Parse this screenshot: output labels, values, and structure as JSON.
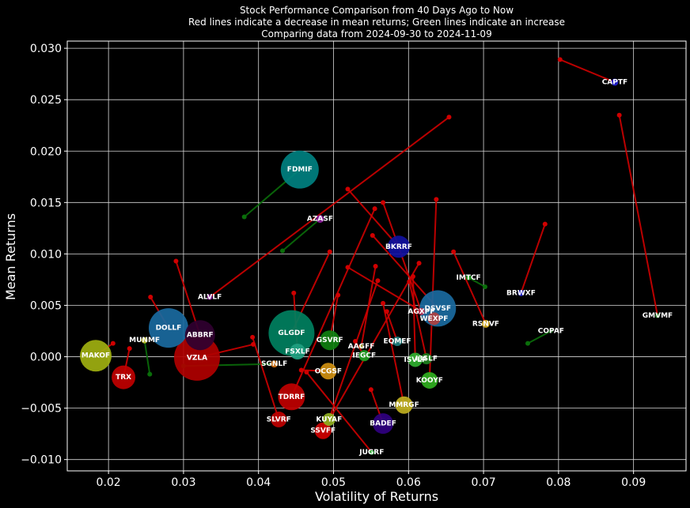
{
  "chart_data": {
    "type": "scatter",
    "title": [
      "Stock Performance Comparison from 40 Days Ago to Now",
      "Red lines indicate a decrease in mean returns; Green lines indicate an increase",
      "Comparing data from 2024-09-30 to 2024-11-09"
    ],
    "xlabel": "Volatility of Returns",
    "ylabel": "Mean Returns",
    "xlim": [
      0.0145,
      0.097
    ],
    "ylim": [
      -0.0111,
      0.0307
    ],
    "xticks": [
      0.02,
      0.03,
      0.04,
      0.05,
      0.06,
      0.07,
      0.08,
      0.09
    ],
    "yticks": [
      -0.01,
      -0.005,
      0.0,
      0.005,
      0.01,
      0.015,
      0.02,
      0.025,
      0.03
    ],
    "xtick_labels": [
      "0.02",
      "0.03",
      "0.04",
      "0.05",
      "0.06",
      "0.07",
      "0.08",
      "0.09"
    ],
    "ytick_labels": [
      "−0.010",
      "−0.005",
      "0.000",
      "0.005",
      "0.010",
      "0.015",
      "0.020",
      "0.025",
      "0.030"
    ],
    "grid": true,
    "increase_color": "#0a6e0a",
    "decrease_color": "#d00000",
    "points": [
      {
        "ticker": "CAPTF",
        "x": 0.0875,
        "y": 0.0267,
        "old_x": 0.0802,
        "old_y": 0.0289,
        "size": 9,
        "color": "#2020d0"
      },
      {
        "ticker": "FDMIF",
        "x": 0.0455,
        "y": 0.0182,
        "old_x": 0.0381,
        "old_y": 0.0136,
        "size": 48,
        "color": "#008080"
      },
      {
        "ticker": "AZASF",
        "x": 0.0482,
        "y": 0.0134,
        "old_x": 0.0432,
        "old_y": 0.0103,
        "size": 10,
        "color": "#8b1a9b"
      },
      {
        "ticker": "BKRRF",
        "x": 0.0587,
        "y": 0.0107,
        "old_x": 0.0519,
        "old_y": 0.0163,
        "size": 28,
        "color": "#1010a0"
      },
      {
        "ticker": "IMTCF",
        "x": 0.068,
        "y": 0.0077,
        "old_x": 0.0702,
        "old_y": 0.0068,
        "size": 7,
        "color": "#22a022"
      },
      {
        "ticker": "ALVLF",
        "x": 0.0335,
        "y": 0.0058,
        "old_x": 0.0654,
        "old_y": 0.0233,
        "size": 7,
        "color": "#8b1a9b"
      },
      {
        "ticker": "BRWXF",
        "x": 0.075,
        "y": 0.0062,
        "old_x": 0.0782,
        "old_y": 0.0129,
        "size": 8,
        "color": "#2020d0"
      },
      {
        "ticker": "GMVMF",
        "x": 0.0932,
        "y": 0.004,
        "old_x": 0.0881,
        "old_y": 0.0235,
        "size": 6,
        "color": "#2a8a2a"
      },
      {
        "ticker": "DSVSF",
        "x": 0.0639,
        "y": 0.0047,
        "old_x": 0.0552,
        "old_y": 0.0118,
        "size": 46,
        "color": "#1a6aa0"
      },
      {
        "ticker": "AGXPF",
        "x": 0.0617,
        "y": 0.0044,
        "old_x": 0.0566,
        "old_y": 0.015,
        "size": 9,
        "color": "#c03050"
      },
      {
        "ticker": "WEXPF",
        "x": 0.0634,
        "y": 0.0037,
        "old_x": 0.0519,
        "old_y": 0.0087,
        "size": 16,
        "color": "#b04040"
      },
      {
        "ticker": "RSNVF",
        "x": 0.0703,
        "y": 0.0032,
        "old_x": 0.066,
        "old_y": 0.0102,
        "size": 10,
        "color": "#d9b020"
      },
      {
        "ticker": "COPAF",
        "x": 0.079,
        "y": 0.0025,
        "old_x": 0.0759,
        "old_y": 0.0013,
        "size": 5,
        "color": "#1a6a1a"
      },
      {
        "ticker": "DOLLF",
        "x": 0.028,
        "y": 0.0028,
        "old_x": 0.0256,
        "old_y": 0.0058,
        "size": 50,
        "color": "#1a6aa0"
      },
      {
        "ticker": "ABBRF",
        "x": 0.0322,
        "y": 0.0021,
        "old_x": 0.029,
        "old_y": 0.0093,
        "size": 38,
        "color": "#300030"
      },
      {
        "ticker": "GLGDF",
        "x": 0.0444,
        "y": 0.0023,
        "old_x": 0.0495,
        "old_y": 0.0102,
        "size": 58,
        "color": "#008060"
      },
      {
        "ticker": "GSVRF",
        "x": 0.0495,
        "y": 0.0016,
        "old_x": 0.0506,
        "old_y": 0.006,
        "size": 25,
        "color": "#108010"
      },
      {
        "ticker": "MUNMF",
        "x": 0.0248,
        "y": 0.0016,
        "old_x": 0.0255,
        "old_y": -0.0017,
        "size": 8,
        "color": "#c0c030"
      },
      {
        "ticker": "EQMEF",
        "x": 0.0585,
        "y": 0.0015,
        "old_x": 0.0571,
        "old_y": 0.0044,
        "size": 12,
        "color": "#208080"
      },
      {
        "ticker": "AAGFF",
        "x": 0.0537,
        "y": 0.001,
        "old_x": 0.0556,
        "old_y": 0.0088,
        "size": 6,
        "color": "#a0a030"
      },
      {
        "ticker": "FSXLF",
        "x": 0.0452,
        "y": 0.0005,
        "old_x": 0.0447,
        "old_y": 0.0062,
        "size": 20,
        "color": "#20a080"
      },
      {
        "ticker": "IEGCF",
        "x": 0.0541,
        "y": 0.0001,
        "old_x": 0.0529,
        "old_y": 0.0015,
        "size": 14,
        "color": "#20a020"
      },
      {
        "ticker": "MAKOF",
        "x": 0.0183,
        "y": 0.0001,
        "old_x": 0.0206,
        "old_y": 0.0013,
        "size": 40,
        "color": "#a0b010"
      },
      {
        "ticker": "VZLA",
        "x": 0.0318,
        "y": -0.0001,
        "old_x": 0.0393,
        "old_y": 0.0012,
        "size": 58,
        "color": "#b00000"
      },
      {
        "ticker": "ISVLF",
        "x": 0.0609,
        "y": -0.0003,
        "old_x": 0.0606,
        "old_y": 0.0078,
        "size": 18,
        "color": "#30b030"
      },
      {
        "ticker": "I3SLF",
        "x": 0.0624,
        "y": -0.0002,
        "old_x": 0.0601,
        "old_y": 0.0073,
        "size": 14,
        "color": "#208020"
      },
      {
        "ticker": "SGNLF",
        "x": 0.0421,
        "y": -0.0007,
        "old_x": 0.03,
        "old_y": -0.0009,
        "size": 9,
        "color": "#d07010"
      },
      {
        "ticker": "OCGSF",
        "x": 0.0493,
        "y": -0.0014,
        "old_x": 0.0457,
        "old_y": -0.0013,
        "size": 21,
        "color": "#d09010"
      },
      {
        "ticker": "TRX",
        "x": 0.022,
        "y": -0.002,
        "old_x": 0.0228,
        "old_y": 0.0008,
        "size": 30,
        "color": "#c00000"
      },
      {
        "ticker": "KOOYF",
        "x": 0.0628,
        "y": -0.0023,
        "old_x": 0.0637,
        "old_y": 0.0153,
        "size": 21,
        "color": "#30b020"
      },
      {
        "ticker": "TDRRF",
        "x": 0.0444,
        "y": -0.0039,
        "old_x": 0.0555,
        "old_y": 0.0144,
        "size": 34,
        "color": "#c00000"
      },
      {
        "ticker": "MMRGF",
        "x": 0.0594,
        "y": -0.0047,
        "old_x": 0.0566,
        "old_y": 0.0052,
        "size": 22,
        "color": "#c0b020"
      },
      {
        "ticker": "SLVRF",
        "x": 0.0427,
        "y": -0.0061,
        "old_x": 0.0392,
        "old_y": 0.0019,
        "size": 20,
        "color": "#c00000"
      },
      {
        "ticker": "KUYAF",
        "x": 0.0494,
        "y": -0.0061,
        "old_x": 0.0559,
        "old_y": 0.0074,
        "size": 16,
        "color": "#90b020"
      },
      {
        "ticker": "BADEF",
        "x": 0.0566,
        "y": -0.0065,
        "old_x": 0.055,
        "old_y": -0.0032,
        "size": 26,
        "color": "#300080"
      },
      {
        "ticker": "SSVFF",
        "x": 0.0486,
        "y": -0.0072,
        "old_x": 0.0614,
        "old_y": 0.0091,
        "size": 21,
        "color": "#d00000"
      },
      {
        "ticker": "JUGRF",
        "x": 0.0551,
        "y": -0.0093,
        "old_x": 0.0464,
        "old_y": -0.0015,
        "size": 6,
        "color": "#30c040"
      }
    ]
  }
}
